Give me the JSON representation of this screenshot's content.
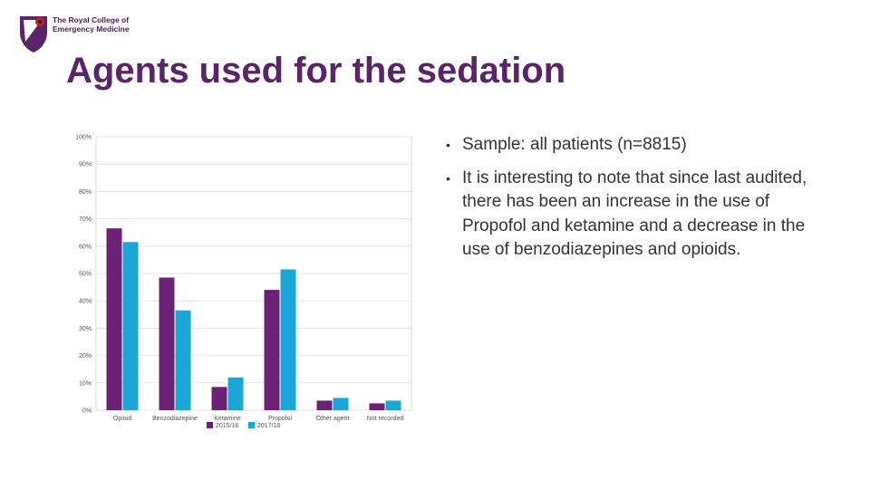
{
  "logo": {
    "line1": "The Royal College of",
    "line2": "Emergency Medicine"
  },
  "title": "Agents used for the sedation",
  "bullets": [
    "Sample: all patients (n=8815)",
    "It is interesting to note that since last audited, there has been an increase in the use of Propofol and ketamine and a decrease in the use of benzodiazepines and opioids."
  ],
  "colors": {
    "title": "#5b2469",
    "series_2015": "#6b2275",
    "series_2017": "#1aa7d6",
    "grid": "#e3e3e3"
  },
  "chart_data": {
    "type": "bar",
    "categories": [
      "Opioid",
      "Benzodiazepine",
      "Ketamine",
      "Propofol",
      "Other agent",
      "Not recorded"
    ],
    "series": [
      {
        "name": "2015/16",
        "values": [
          66.5,
          48.5,
          8.5,
          44,
          3.5,
          2.5
        ],
        "color": "#6b2275"
      },
      {
        "name": "2017/18",
        "values": [
          61.5,
          36.5,
          12,
          51.5,
          4.5,
          3.5
        ],
        "color": "#1aa7d6"
      }
    ],
    "yticks": [
      "0%",
      "10%",
      "20%",
      "30%",
      "40%",
      "50%",
      "60%",
      "70%",
      "80%",
      "90%",
      "100%"
    ],
    "ylim": [
      0,
      100
    ],
    "grid": true,
    "legend_position": "bottom"
  }
}
